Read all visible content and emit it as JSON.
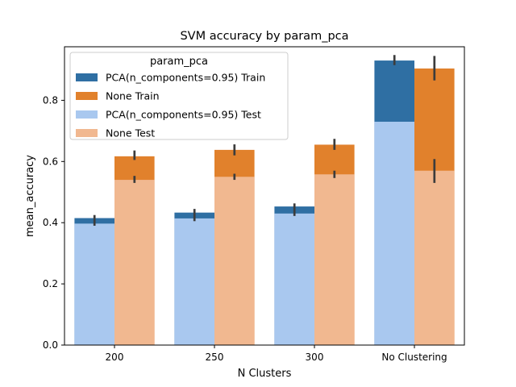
{
  "chart_data": {
    "type": "bar",
    "title": "SVM accuracy by param_pca",
    "xlabel": "N Clusters",
    "ylabel": "mean_accuracy",
    "categories": [
      "200",
      "250",
      "300",
      "No Clustering"
    ],
    "ylim": [
      0,
      0.975
    ],
    "yticks": [
      0.0,
      0.2,
      0.4,
      0.6,
      0.8
    ],
    "grid": false,
    "legend": {
      "title": "param_pca",
      "position": "upper-left",
      "entries": [
        "PCA(n_components=0.95) Train",
        "None Train",
        "PCA(n_components=0.95) Test",
        "None Test"
      ]
    },
    "series": [
      {
        "name": "PCA(n_components=0.95) Train",
        "group": "PCA(n_components=0.95)",
        "split": "Train",
        "color": "#2f6fa3",
        "values": [
          0.415,
          0.433,
          0.453,
          0.93
        ],
        "error": [
          [
            0.39,
            0.425
          ],
          [
            0.405,
            0.445
          ],
          [
            0.422,
            0.463
          ],
          [
            0.915,
            0.948
          ]
        ]
      },
      {
        "name": "None Train",
        "group": "None",
        "split": "Train",
        "color": "#e1812c",
        "values": [
          0.617,
          0.638,
          0.655,
          0.904
        ],
        "error": [
          [
            0.605,
            0.636
          ],
          [
            0.62,
            0.656
          ],
          [
            0.638,
            0.674
          ],
          [
            0.865,
            0.945
          ]
        ]
      },
      {
        "name": "PCA(n_components=0.95) Test",
        "group": "PCA(n_components=0.95)",
        "split": "Test",
        "color": "#a9c8ef",
        "values": [
          0.397,
          0.414,
          0.43,
          0.73
        ],
        "error": null
      },
      {
        "name": "None Test",
        "group": "None",
        "split": "Test",
        "color": "#f1b890",
        "values": [
          0.54,
          0.55,
          0.558,
          0.57
        ],
        "error": [
          [
            0.53,
            0.553
          ],
          [
            0.54,
            0.56
          ],
          [
            0.546,
            0.57
          ],
          [
            0.53,
            0.608
          ]
        ]
      }
    ]
  }
}
